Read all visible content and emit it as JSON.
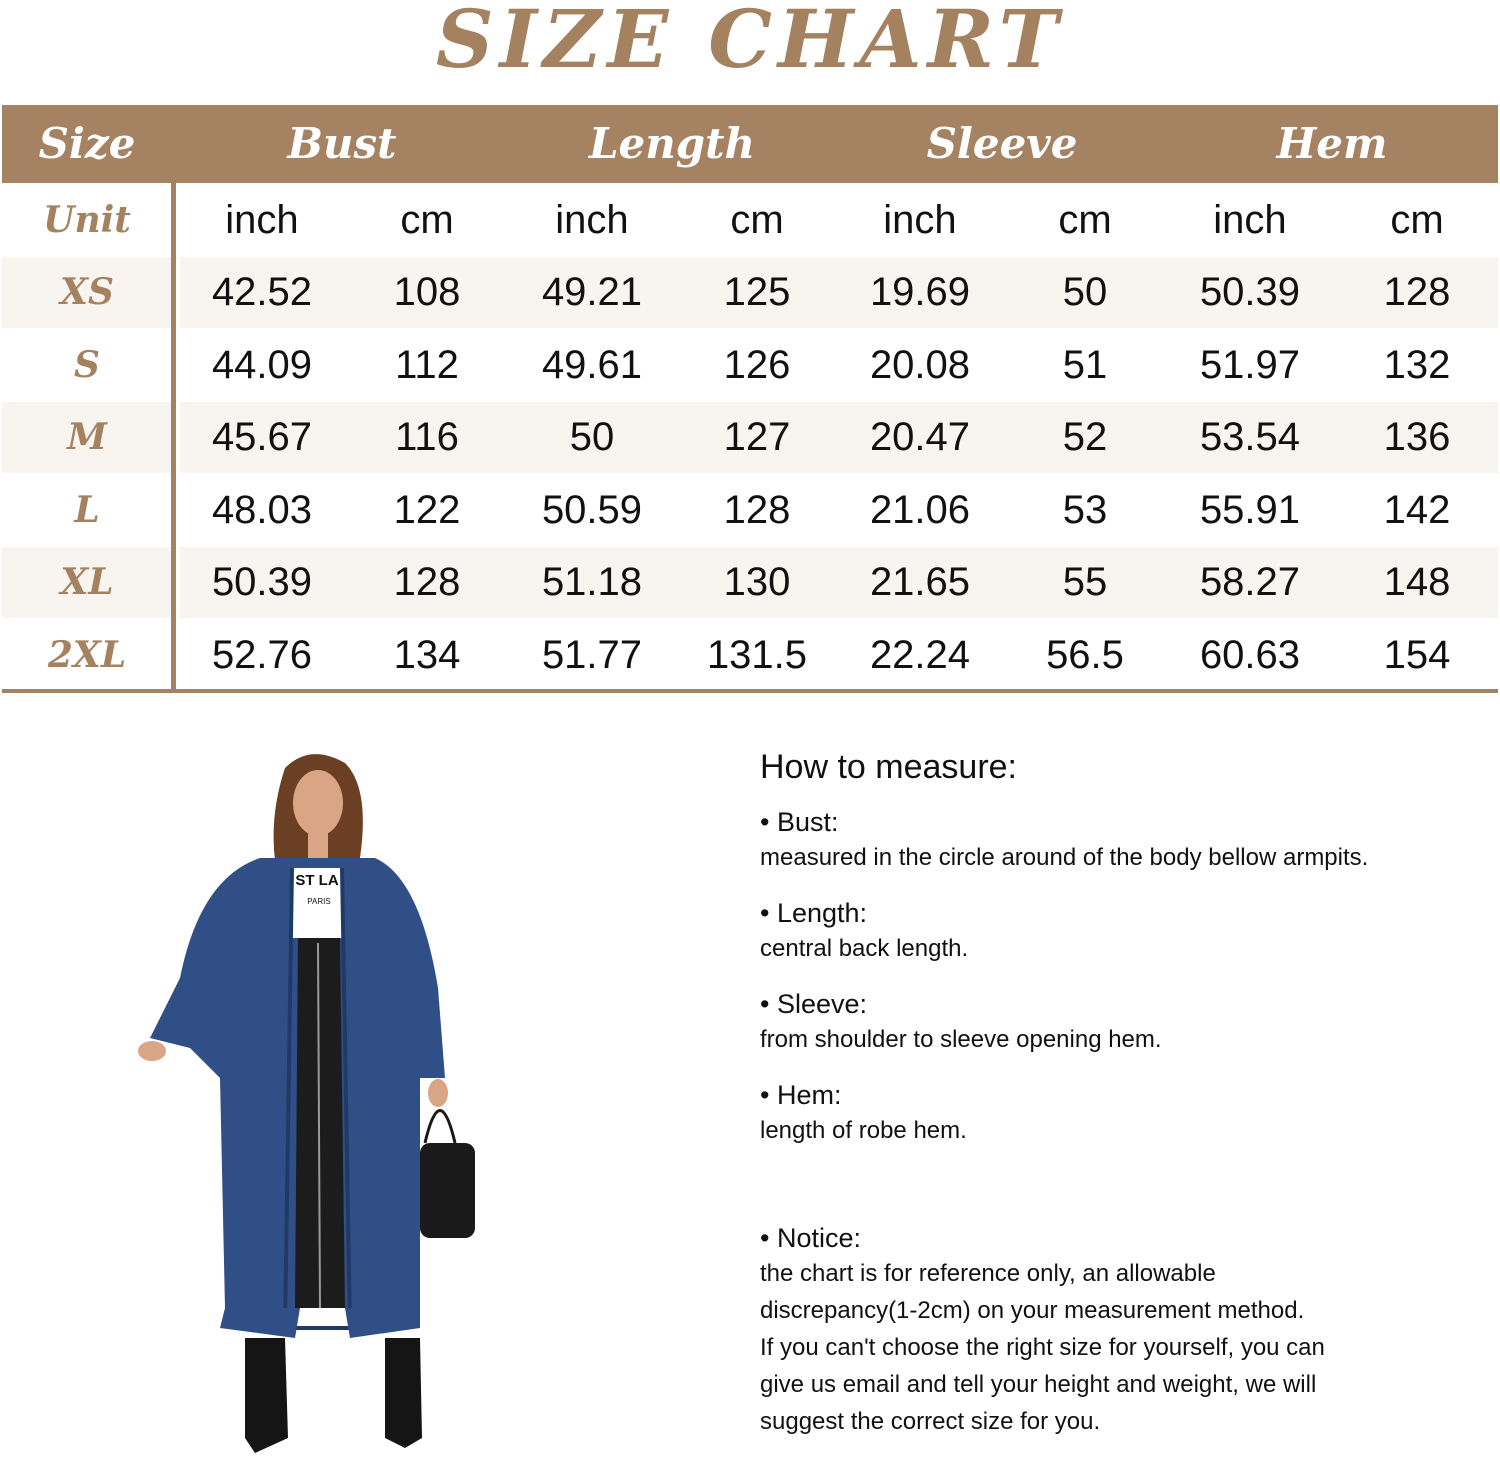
{
  "title": "SIZE CHART",
  "table": {
    "headers": [
      "Size",
      "Bust",
      "Length",
      "Sleeve",
      "Hem"
    ],
    "unit_label": "Unit",
    "units": [
      "inch",
      "cm",
      "inch",
      "cm",
      "inch",
      "cm",
      "inch",
      "cm"
    ],
    "rows": [
      {
        "size": "XS",
        "values": [
          "42.52",
          "108",
          "49.21",
          "125",
          "19.69",
          "50",
          "50.39",
          "128"
        ]
      },
      {
        "size": "S",
        "values": [
          "44.09",
          "112",
          "49.61",
          "126",
          "20.08",
          "51",
          "51.97",
          "132"
        ]
      },
      {
        "size": "M",
        "values": [
          "45.67",
          "116",
          "50",
          "127",
          "20.47",
          "52",
          "53.54",
          "136"
        ]
      },
      {
        "size": "L",
        "values": [
          "48.03",
          "122",
          "50.59",
          "128",
          "21.06",
          "53",
          "55.91",
          "142"
        ]
      },
      {
        "size": "XL",
        "values": [
          "50.39",
          "128",
          "51.18",
          "130",
          "21.65",
          "55",
          "58.27",
          "148"
        ]
      },
      {
        "size": "2XL",
        "values": [
          "52.76",
          "134",
          "51.77",
          "131.5",
          "22.24",
          "56.5",
          "60.63",
          "154"
        ]
      }
    ]
  },
  "measure": {
    "heading": "How to measure:",
    "items": [
      {
        "title": "• Bust:",
        "lines": [
          "measured in the circle around of the body bellow armpits."
        ]
      },
      {
        "title": "• Length:",
        "lines": [
          "central back length."
        ]
      },
      {
        "title": "• Sleeve:",
        "lines": [
          "from shoulder to sleeve opening hem."
        ]
      },
      {
        "title": "• Hem:",
        "lines": [
          "length of robe hem."
        ]
      },
      {
        "title": "• Notice:",
        "lines": [
          "the chart is for reference only, an allowable",
          "discrepancy(1-2cm) on your measurement method.",
          "If you can't choose the right size for yourself, you can",
          "give us email and tell your height and weight, we will",
          "suggest the correct size for you."
        ]
      }
    ]
  },
  "photo": {
    "shirt_text": "ST LA",
    "shirt_subtext": "PARIS"
  },
  "colors": {
    "accent": "#a48262",
    "title": "#a5825f",
    "stripe": "#f8f4f0",
    "denim": "#2f4f86"
  }
}
